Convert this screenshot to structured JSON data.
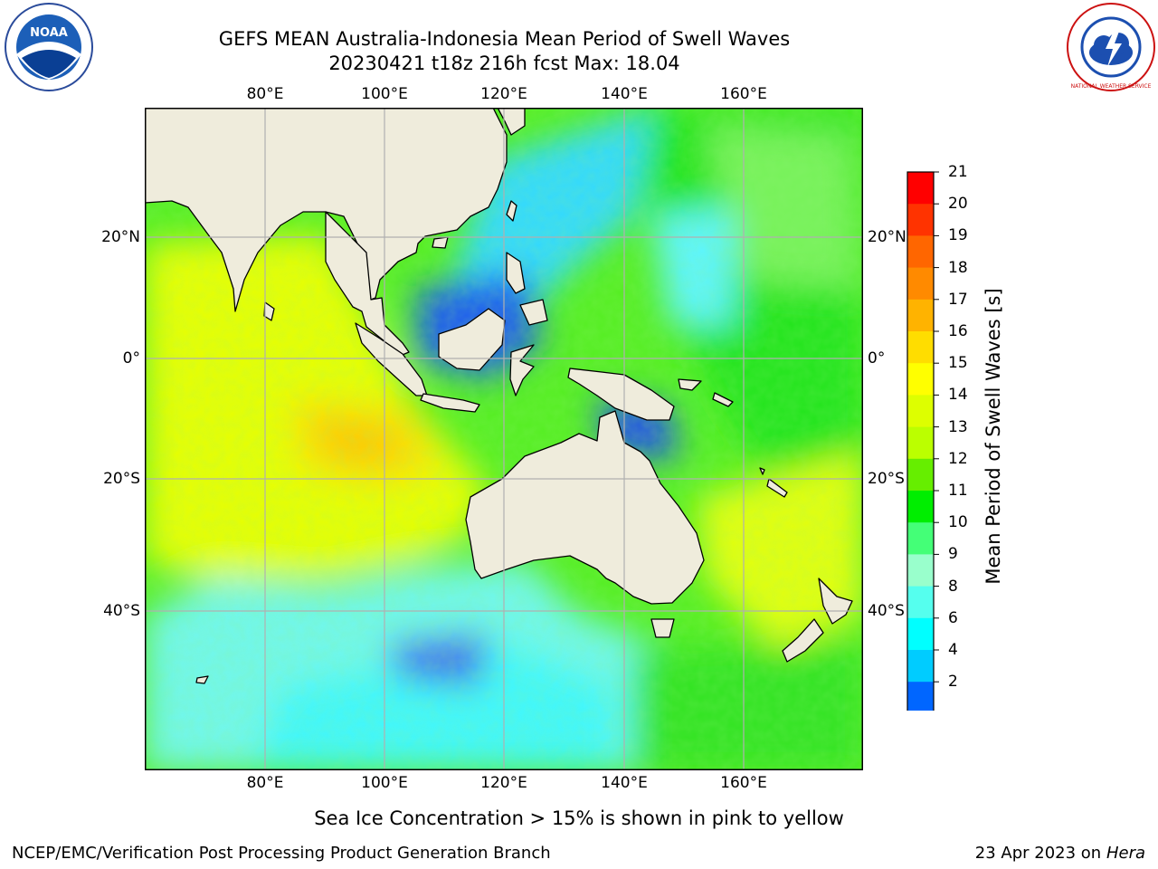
{
  "title_line1": "GEFS MEAN Australia-Indonesia Mean Period of Swell Waves",
  "title_line2": "20230421 t18z 216h fcst   Max: 18.04",
  "colorbar_label": "Mean Period of Swell Waves [s]",
  "colorbar_ticks": [
    "21",
    "20",
    "19",
    "18",
    "17",
    "16",
    "15",
    "14",
    "13",
    "12",
    "11",
    "10",
    "9",
    "8",
    "6",
    "4",
    "2"
  ],
  "colorbar_colors": [
    "#ff0000",
    "#ff3300",
    "#ff6600",
    "#ff8a00",
    "#ffb300",
    "#ffdd00",
    "#ffff00",
    "#ddff00",
    "#bbff00",
    "#66ee00",
    "#00ee00",
    "#44ff77",
    "#99ffcc",
    "#55ffee",
    "#00ffff",
    "#00ccff",
    "#0066ff"
  ],
  "lon_labels": [
    "80°E",
    "100°E",
    "120°E",
    "140°E",
    "160°E"
  ],
  "lat_labels": [
    "20°N",
    "0°",
    "20°S",
    "40°S"
  ],
  "sea_ice_note": "Sea Ice Concentration > 15% is shown in pink to yellow",
  "footer_left": "NCEP/EMC/Verification Post Processing Product Generation Branch",
  "footer_right_date": "23 Apr 2023 on ",
  "footer_right_host": "Hera",
  "noaa_logo_text": "NOAA",
  "nws_logo_text": "NATIONAL WEATHER SERVICE",
  "colors": {
    "land": "#efecdc",
    "grid": "#b0b0b0",
    "coast": "#000000"
  }
}
